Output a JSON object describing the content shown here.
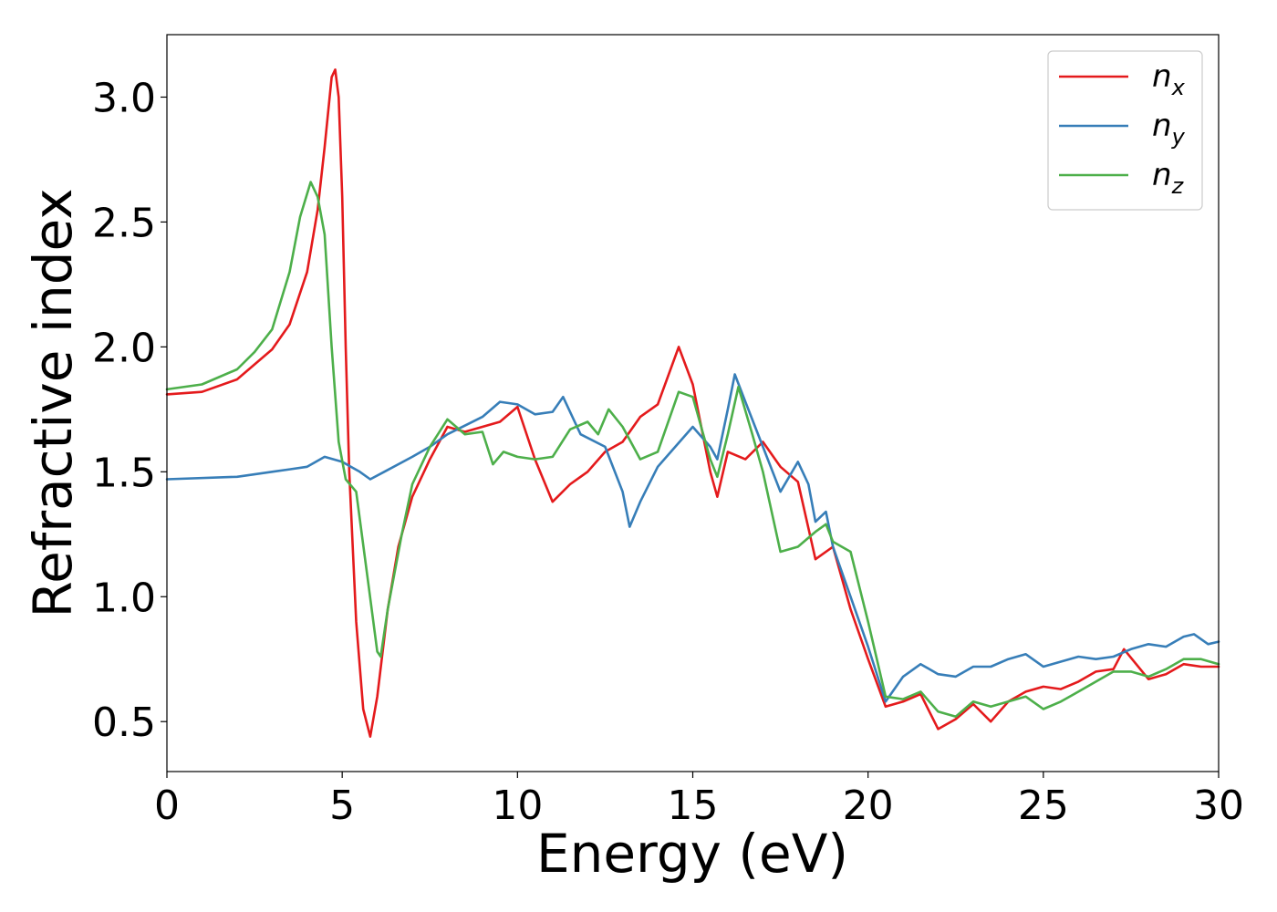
{
  "chart_data": {
    "type": "line",
    "xlabel": "Energy (eV)",
    "ylabel": "Refractive index",
    "xlim": [
      0,
      30
    ],
    "ylim": [
      0.3,
      3.25
    ],
    "xticks": [
      0,
      5,
      10,
      15,
      20,
      25,
      30
    ],
    "xtick_labels": [
      "0",
      "5",
      "10",
      "15",
      "20",
      "25",
      "30"
    ],
    "yticks": [
      0.5,
      1.0,
      1.5,
      2.0,
      2.5,
      3.0
    ],
    "ytick_labels": [
      "0.5",
      "1.0",
      "1.5",
      "2.0",
      "2.5",
      "3.0"
    ],
    "grid": false,
    "legend_position": "top-right",
    "series": [
      {
        "name": "n_x",
        "legend_main": "n",
        "legend_sub": "x",
        "color": "#e41a1c",
        "points": [
          [
            0,
            1.81
          ],
          [
            1,
            1.82
          ],
          [
            2,
            1.87
          ],
          [
            3,
            1.99
          ],
          [
            3.5,
            2.09
          ],
          [
            4,
            2.3
          ],
          [
            4.3,
            2.55
          ],
          [
            4.5,
            2.8
          ],
          [
            4.7,
            3.08
          ],
          [
            4.8,
            3.11
          ],
          [
            4.9,
            3.0
          ],
          [
            5.0,
            2.6
          ],
          [
            5.1,
            2.0
          ],
          [
            5.2,
            1.5
          ],
          [
            5.4,
            0.9
          ],
          [
            5.6,
            0.55
          ],
          [
            5.8,
            0.44
          ],
          [
            6.0,
            0.6
          ],
          [
            6.3,
            0.95
          ],
          [
            6.6,
            1.2
          ],
          [
            7,
            1.4
          ],
          [
            7.5,
            1.55
          ],
          [
            8,
            1.68
          ],
          [
            8.5,
            1.66
          ],
          [
            9,
            1.68
          ],
          [
            9.5,
            1.7
          ],
          [
            10,
            1.76
          ],
          [
            10.5,
            1.55
          ],
          [
            11,
            1.38
          ],
          [
            11.5,
            1.45
          ],
          [
            12,
            1.5
          ],
          [
            12.5,
            1.58
          ],
          [
            13,
            1.62
          ],
          [
            13.5,
            1.72
          ],
          [
            14,
            1.77
          ],
          [
            14.6,
            2.0
          ],
          [
            15,
            1.85
          ],
          [
            15.5,
            1.5
          ],
          [
            15.7,
            1.4
          ],
          [
            16,
            1.58
          ],
          [
            16.5,
            1.55
          ],
          [
            17,
            1.62
          ],
          [
            17.5,
            1.52
          ],
          [
            18,
            1.46
          ],
          [
            18.5,
            1.15
          ],
          [
            19,
            1.2
          ],
          [
            19.5,
            0.95
          ],
          [
            20,
            0.75
          ],
          [
            20.5,
            0.56
          ],
          [
            21,
            0.58
          ],
          [
            21.5,
            0.61
          ],
          [
            22,
            0.47
          ],
          [
            22.5,
            0.51
          ],
          [
            23,
            0.57
          ],
          [
            23.5,
            0.5
          ],
          [
            24,
            0.58
          ],
          [
            24.5,
            0.62
          ],
          [
            25,
            0.64
          ],
          [
            25.5,
            0.63
          ],
          [
            26,
            0.66
          ],
          [
            26.5,
            0.7
          ],
          [
            27,
            0.71
          ],
          [
            27.3,
            0.79
          ],
          [
            28,
            0.67
          ],
          [
            28.5,
            0.69
          ],
          [
            29,
            0.73
          ],
          [
            29.5,
            0.72
          ],
          [
            30,
            0.72
          ]
        ]
      },
      {
        "name": "n_y",
        "legend_main": "n",
        "legend_sub": "y",
        "color": "#377eb8",
        "points": [
          [
            0,
            1.47
          ],
          [
            2,
            1.48
          ],
          [
            3,
            1.5
          ],
          [
            3.5,
            1.51
          ],
          [
            4,
            1.52
          ],
          [
            4.5,
            1.56
          ],
          [
            5,
            1.54
          ],
          [
            5.5,
            1.5
          ],
          [
            5.8,
            1.47
          ],
          [
            6.2,
            1.5
          ],
          [
            7,
            1.56
          ],
          [
            7.5,
            1.6
          ],
          [
            8,
            1.65
          ],
          [
            9,
            1.72
          ],
          [
            9.5,
            1.78
          ],
          [
            10,
            1.77
          ],
          [
            10.5,
            1.73
          ],
          [
            11,
            1.74
          ],
          [
            11.3,
            1.8
          ],
          [
            11.8,
            1.65
          ],
          [
            12.5,
            1.6
          ],
          [
            13,
            1.42
          ],
          [
            13.2,
            1.28
          ],
          [
            13.5,
            1.38
          ],
          [
            14,
            1.52
          ],
          [
            14.5,
            1.6
          ],
          [
            15,
            1.68
          ],
          [
            15.5,
            1.6
          ],
          [
            15.7,
            1.55
          ],
          [
            16,
            1.75
          ],
          [
            16.2,
            1.89
          ],
          [
            16.5,
            1.78
          ],
          [
            17,
            1.6
          ],
          [
            17.5,
            1.42
          ],
          [
            18,
            1.54
          ],
          [
            18.3,
            1.45
          ],
          [
            18.5,
            1.3
          ],
          [
            18.8,
            1.34
          ],
          [
            19,
            1.2
          ],
          [
            19.5,
            1.0
          ],
          [
            20,
            0.8
          ],
          [
            20.5,
            0.58
          ],
          [
            21,
            0.68
          ],
          [
            21.5,
            0.73
          ],
          [
            22,
            0.69
          ],
          [
            22.5,
            0.68
          ],
          [
            23,
            0.72
          ],
          [
            23.5,
            0.72
          ],
          [
            24,
            0.75
          ],
          [
            24.5,
            0.77
          ],
          [
            25,
            0.72
          ],
          [
            25.5,
            0.74
          ],
          [
            26,
            0.76
          ],
          [
            26.5,
            0.75
          ],
          [
            27,
            0.76
          ],
          [
            27.5,
            0.79
          ],
          [
            28,
            0.81
          ],
          [
            28.5,
            0.8
          ],
          [
            29,
            0.84
          ],
          [
            29.3,
            0.85
          ],
          [
            29.7,
            0.81
          ],
          [
            30,
            0.82
          ]
        ]
      },
      {
        "name": "n_z",
        "legend_main": "n",
        "legend_sub": "z",
        "color": "#4daf4a",
        "points": [
          [
            0,
            1.83
          ],
          [
            1,
            1.85
          ],
          [
            2,
            1.91
          ],
          [
            2.5,
            1.98
          ],
          [
            3,
            2.07
          ],
          [
            3.5,
            2.3
          ],
          [
            3.8,
            2.52
          ],
          [
            4.1,
            2.66
          ],
          [
            4.3,
            2.6
          ],
          [
            4.5,
            2.45
          ],
          [
            4.7,
            2.0
          ],
          [
            4.9,
            1.62
          ],
          [
            5.1,
            1.47
          ],
          [
            5.4,
            1.42
          ],
          [
            5.7,
            1.1
          ],
          [
            6.0,
            0.78
          ],
          [
            6.1,
            0.76
          ],
          [
            6.3,
            0.95
          ],
          [
            6.7,
            1.25
          ],
          [
            7,
            1.45
          ],
          [
            7.5,
            1.6
          ],
          [
            8,
            1.71
          ],
          [
            8.5,
            1.65
          ],
          [
            9,
            1.66
          ],
          [
            9.3,
            1.53
          ],
          [
            9.6,
            1.58
          ],
          [
            10,
            1.56
          ],
          [
            10.5,
            1.55
          ],
          [
            11,
            1.56
          ],
          [
            11.5,
            1.67
          ],
          [
            12,
            1.7
          ],
          [
            12.3,
            1.65
          ],
          [
            12.6,
            1.75
          ],
          [
            13,
            1.68
          ],
          [
            13.5,
            1.55
          ],
          [
            14,
            1.58
          ],
          [
            14.6,
            1.82
          ],
          [
            15,
            1.8
          ],
          [
            15.5,
            1.55
          ],
          [
            15.7,
            1.48
          ],
          [
            16,
            1.65
          ],
          [
            16.3,
            1.84
          ],
          [
            16.7,
            1.65
          ],
          [
            17,
            1.5
          ],
          [
            17.5,
            1.18
          ],
          [
            18,
            1.2
          ],
          [
            18.5,
            1.26
          ],
          [
            18.8,
            1.29
          ],
          [
            19,
            1.22
          ],
          [
            19.5,
            1.18
          ],
          [
            20,
            0.9
          ],
          [
            20.5,
            0.6
          ],
          [
            21,
            0.59
          ],
          [
            21.5,
            0.62
          ],
          [
            22,
            0.54
          ],
          [
            22.5,
            0.52
          ],
          [
            23,
            0.58
          ],
          [
            23.5,
            0.56
          ],
          [
            24,
            0.58
          ],
          [
            24.5,
            0.6
          ],
          [
            25,
            0.55
          ],
          [
            25.5,
            0.58
          ],
          [
            26,
            0.62
          ],
          [
            26.5,
            0.66
          ],
          [
            27,
            0.7
          ],
          [
            27.5,
            0.7
          ],
          [
            28,
            0.68
          ],
          [
            28.5,
            0.71
          ],
          [
            29,
            0.75
          ],
          [
            29.5,
            0.75
          ],
          [
            30,
            0.73
          ]
        ]
      }
    ]
  }
}
